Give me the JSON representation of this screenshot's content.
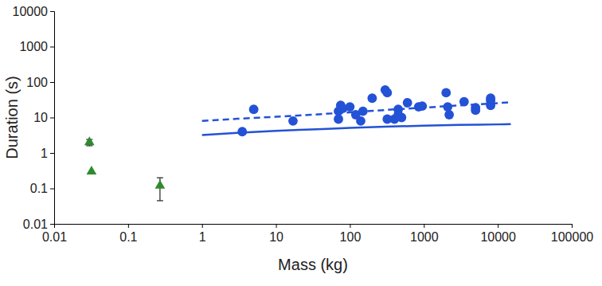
{
  "chart_data": {
    "type": "scatter",
    "x_label": "Mass (kg)",
    "y_label": "Duration (s)",
    "log": true,
    "grid": false,
    "xlim": [
      0.01,
      100000
    ],
    "ylim": [
      0.01,
      10000
    ],
    "xticks": [
      0.01,
      0.1,
      1,
      10,
      100,
      1000,
      10000,
      100000
    ],
    "yticks": [
      0.01,
      0.1,
      1,
      10,
      100,
      1000,
      10000
    ],
    "series": [
      {
        "type": "scatter",
        "marker": "circle",
        "color": "#2352d6",
        "x": [
          3.5,
          5,
          17,
          70,
          70,
          75,
          80,
          100,
          120,
          140,
          150,
          200,
          300,
          320,
          320,
          400,
          450,
          450,
          500,
          600,
          850,
          950,
          2000,
          2100,
          2200,
          3500,
          5000,
          5000,
          8000,
          8000,
          8000
        ],
        "values": [
          4,
          17,
          8,
          9,
          15,
          22,
          18,
          20,
          12,
          8,
          15,
          35,
          60,
          50,
          9,
          9,
          12,
          17,
          10,
          26,
          20,
          21,
          50,
          20,
          12,
          28,
          16,
          19,
          22,
          30,
          35
        ]
      },
      {
        "type": "scatter",
        "marker": "triangle",
        "color": "#2e8b2e",
        "x": [
          0.03,
          0.032,
          0.27
        ],
        "values": [
          2,
          0.3,
          0.12
        ],
        "error_minus": [
          0.4,
          null,
          0.075
        ],
        "error_plus": [
          0.4,
          null,
          0.08
        ]
      },
      {
        "type": "line",
        "line_style": "solid",
        "color": "#2352d6",
        "x": [
          1,
          3,
          10,
          30,
          100,
          300,
          1000,
          3000,
          10000,
          15000
        ],
        "values": [
          3.2,
          3.7,
          4.2,
          4.6,
          5.1,
          5.5,
          5.9,
          6.2,
          6.4,
          6.5
        ]
      },
      {
        "type": "line",
        "line_style": "dashed",
        "color": "#2352d6",
        "x": [
          1,
          3,
          10,
          30,
          100,
          300,
          1000,
          3000,
          10000,
          15000
        ],
        "values": [
          8,
          9.2,
          10.5,
          12,
          14,
          16.3,
          19,
          22,
          25.5,
          27
        ]
      }
    ]
  }
}
